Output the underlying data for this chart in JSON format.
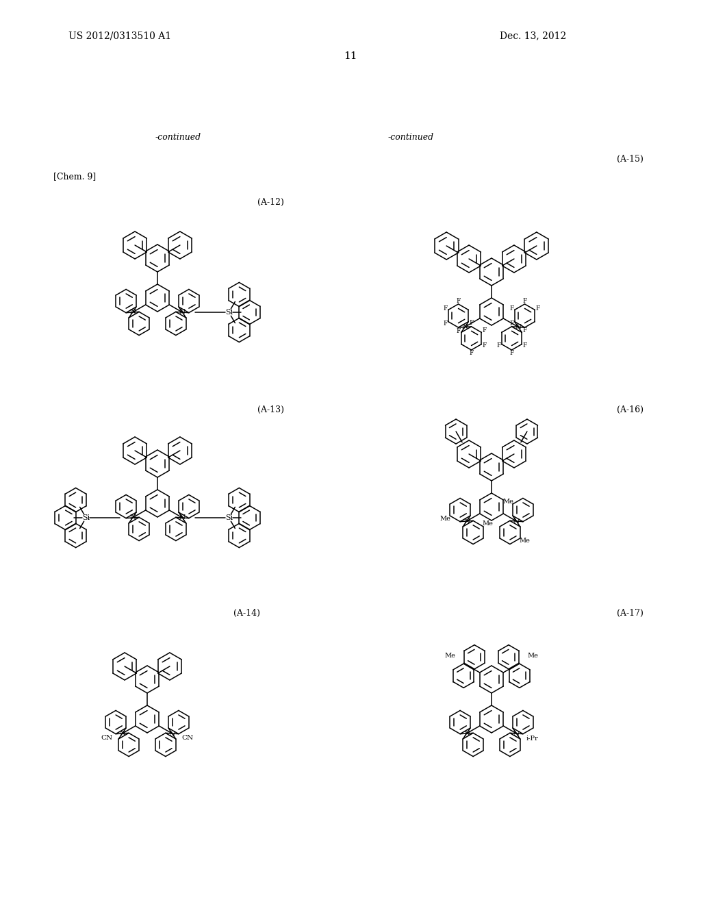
{
  "background_color": "#ffffff",
  "header_left": "US 2012/0313510 A1",
  "header_right": "Dec. 13, 2012",
  "page_number": "11",
  "chem_label": "[Chem. 9]",
  "continued_left": "-continued",
  "continued_right": "-continued"
}
